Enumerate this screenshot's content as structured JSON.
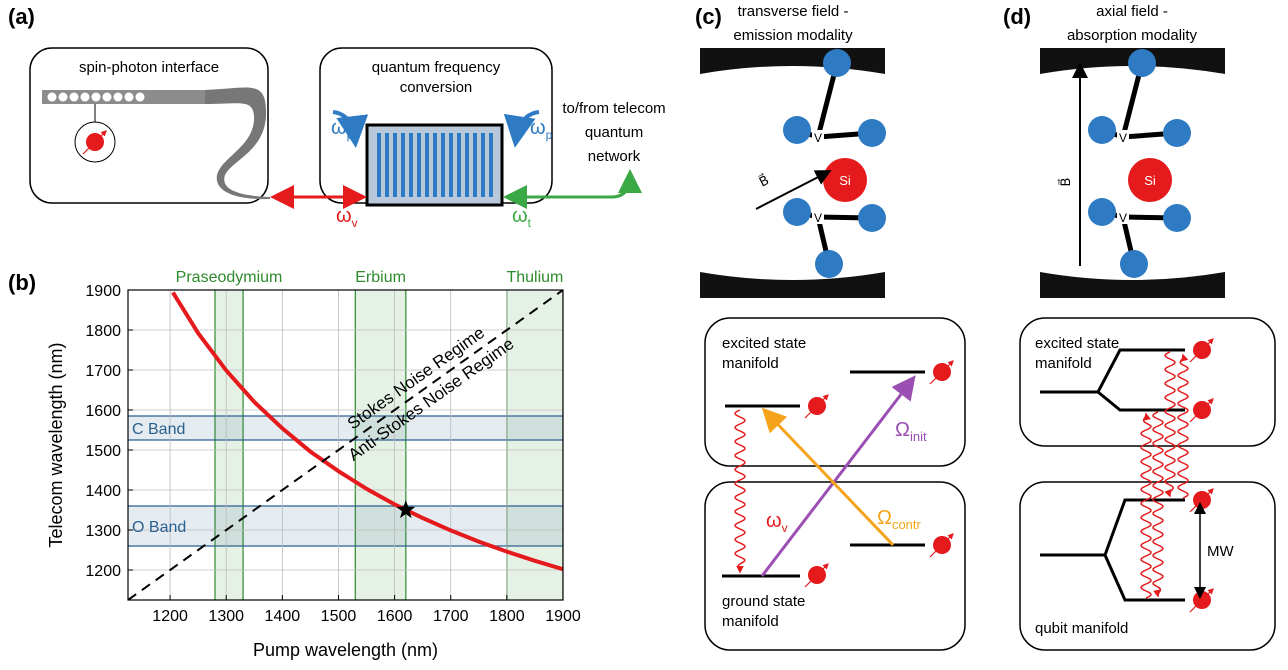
{
  "panels": {
    "a": {
      "label": "(a)",
      "spin_photon": "spin-photon interface",
      "qfc": [
        "quantum frequency",
        "conversion"
      ],
      "network": [
        "to/from telecom",
        "quantum",
        "network"
      ],
      "omega_p_left": {
        "symbol": "ω",
        "sub": "p"
      },
      "omega_p_right": {
        "symbol": "ω",
        "sub": "p"
      },
      "omega_v": {
        "symbol": "ω",
        "sub": "v"
      },
      "omega_t": {
        "symbol": "ω",
        "sub": "t"
      }
    },
    "b": {
      "label": "(b)"
    },
    "c": {
      "label": "(c)",
      "title": [
        "transverse field -",
        "emission modality"
      ],
      "atoms": {
        "si": "Si",
        "v_top": "V",
        "v_bottom": "V",
        "b": "B⃗"
      },
      "excited": [
        "excited state",
        "manifold"
      ],
      "ground": [
        "ground state",
        "manifold"
      ],
      "omega_init": {
        "symbol": "Ω",
        "sub": "init"
      },
      "omega_contr": {
        "symbol": "Ω",
        "sub": "contr"
      },
      "omega_v": {
        "symbol": "ω",
        "sub": "v"
      }
    },
    "d": {
      "label": "(d)",
      "title": [
        "axial field -",
        "absorption modality"
      ],
      "atoms": {
        "si": "Si",
        "v_top": "V",
        "v_bottom": "V",
        "b": "B⃗"
      },
      "excited": [
        "excited state",
        "manifold"
      ],
      "qubit": "qubit manifold",
      "mw": "MW"
    }
  },
  "chart_data": {
    "type": "line",
    "xlabel": "Pump wavelength (nm)",
    "ylabel": "Telecom wavelength (nm)",
    "xlim": [
      1125,
      1900
    ],
    "ylim": [
      1125,
      1900
    ],
    "xticks": [
      1200,
      1300,
      1400,
      1500,
      1600,
      1700,
      1800,
      1900
    ],
    "yticks": [
      1200,
      1300,
      1400,
      1500,
      1600,
      1700,
      1800,
      1900
    ],
    "grid": true,
    "series": [
      {
        "color": "#e41a1c",
        "x": [
          1205,
          1250,
          1300,
          1350,
          1400,
          1450,
          1500,
          1550,
          1600,
          1650,
          1700,
          1750,
          1800,
          1850,
          1900
        ],
        "values": [
          1894,
          1792,
          1699,
          1620,
          1554,
          1496,
          1447,
          1403,
          1364,
          1330,
          1299,
          1271,
          1246,
          1223,
          1202
        ]
      },
      {
        "color": "#000000",
        "dash": true,
        "x": [
          1125,
          1900
        ],
        "values": [
          1125,
          1900
        ]
      }
    ],
    "points": [
      {
        "x": 1620,
        "y": 1350,
        "marker": "star",
        "color": "#000000"
      }
    ],
    "horizontal_bands": [
      {
        "name": "C Band",
        "range": [
          1525,
          1585
        ],
        "color": "#2b5f8f"
      },
      {
        "name": "O Band",
        "range": [
          1260,
          1360
        ],
        "color": "#2b5f8f"
      }
    ],
    "vertical_bands": [
      {
        "name": "Praseodymium",
        "range": [
          1280,
          1330
        ],
        "color": "#2e8b2e"
      },
      {
        "name": "Erbium",
        "range": [
          1530,
          1620
        ],
        "color": "#2e8b2e"
      },
      {
        "name": "Thulium",
        "range": [
          1800,
          1900
        ],
        "color": "#2e8b2e"
      }
    ],
    "annotations": [
      "Stokes Noise Regime",
      "Anti-Stokes Noise Regime"
    ]
  }
}
